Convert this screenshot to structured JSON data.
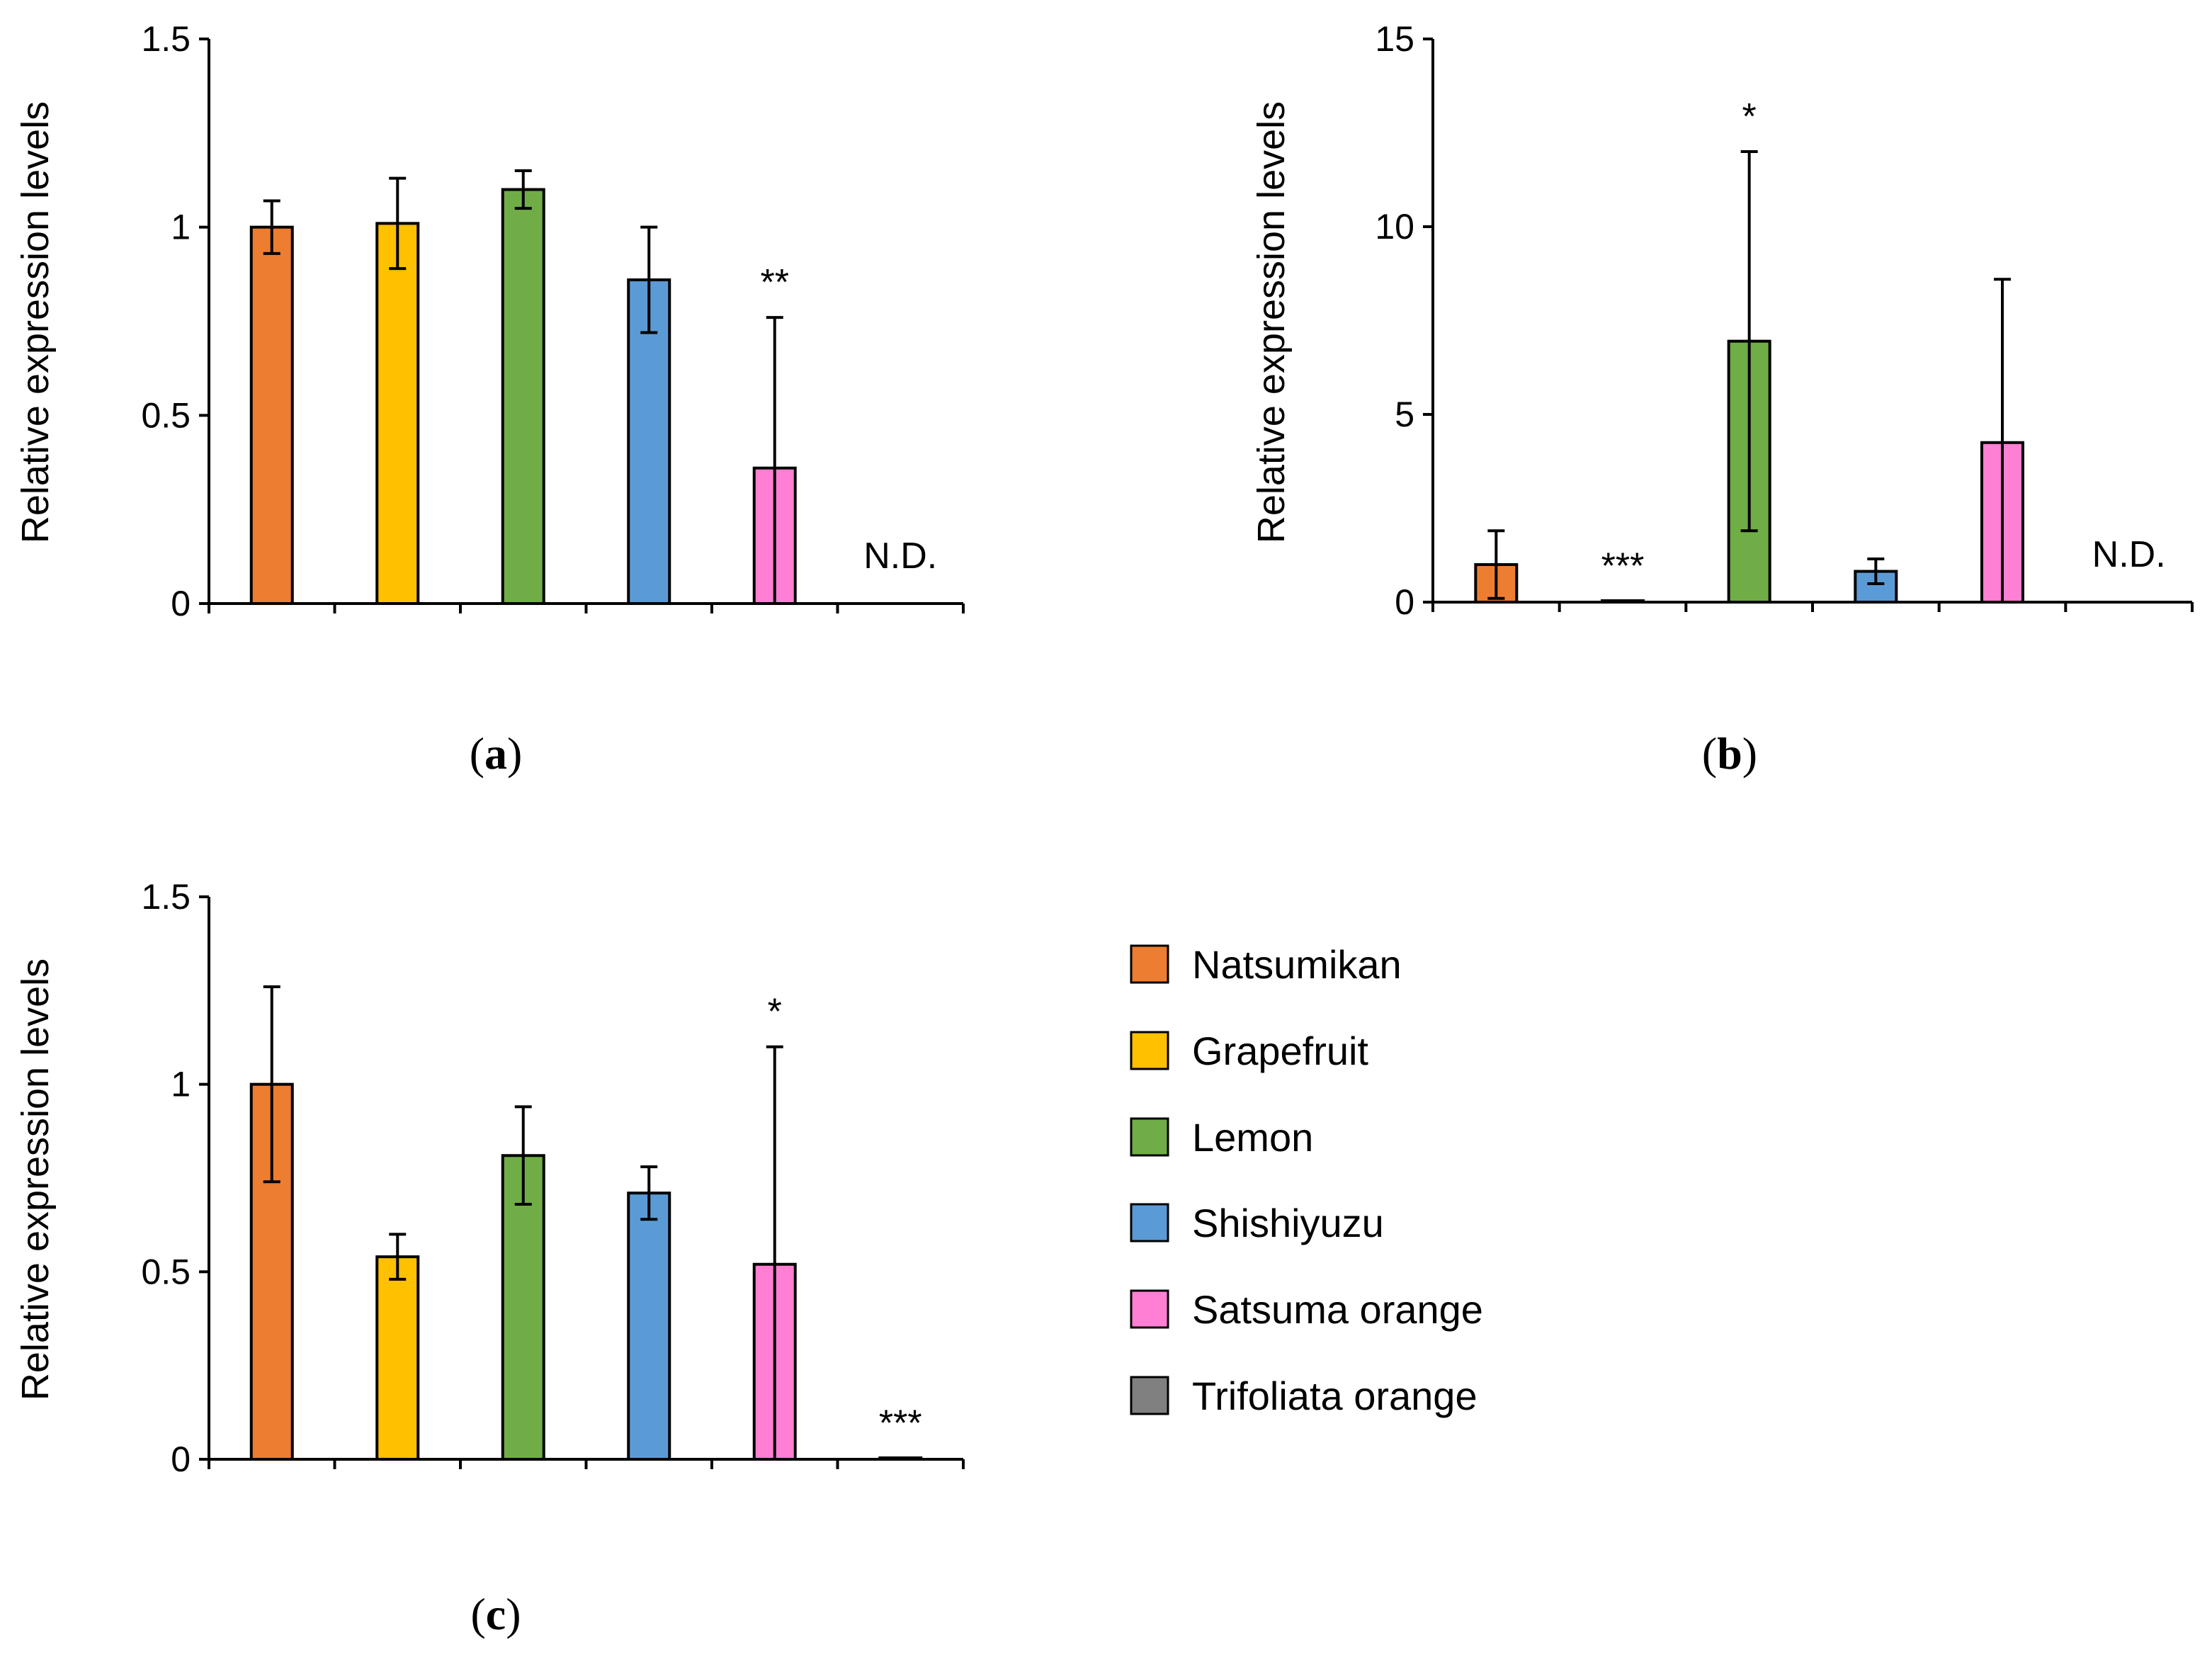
{
  "chart_data": [
    {
      "type": "bar",
      "panel": "a",
      "categories": [
        "Natsumikan",
        "Grapefruit",
        "Lemon",
        "Shishiyuzu",
        "Satsuma orange",
        "Trifoliata orange"
      ],
      "values": [
        1.0,
        1.01,
        1.1,
        0.86,
        0.36,
        null
      ],
      "errors": [
        0.07,
        0.12,
        0.05,
        0.14,
        0.4,
        null
      ],
      "annotations": [
        "",
        "",
        "",
        "",
        "**",
        "N.D."
      ],
      "ylabel": "Relative expression levels",
      "ylim": [
        0,
        1.5
      ],
      "yticks": [
        0,
        0.5,
        1,
        1.5
      ],
      "ytick_labels": [
        "0",
        "0.5",
        "1",
        "1.5"
      ]
    },
    {
      "type": "bar",
      "panel": "b",
      "categories": [
        "Natsumikan",
        "Grapefruit",
        "Lemon",
        "Shishiyuzu",
        "Satsuma orange",
        "Trifoliata orange"
      ],
      "values": [
        1.0,
        0.03,
        6.95,
        0.82,
        4.25,
        null
      ],
      "errors": [
        0.9,
        0.0,
        5.05,
        0.33,
        4.35,
        null
      ],
      "annotations": [
        "",
        "***",
        "*",
        "",
        "",
        "N.D."
      ],
      "ylabel": "Relative expression levels",
      "ylim": [
        0,
        15
      ],
      "yticks": [
        0,
        5,
        10,
        15
      ],
      "ytick_labels": [
        "0",
        "5",
        "10",
        "15"
      ]
    },
    {
      "type": "bar",
      "panel": "c",
      "categories": [
        "Natsumikan",
        "Grapefruit",
        "Lemon",
        "Shishiyuzu",
        "Satsuma orange",
        "Trifoliata orange"
      ],
      "values": [
        1.0,
        0.54,
        0.81,
        0.71,
        0.52,
        0.003
      ],
      "errors": [
        0.26,
        0.06,
        0.13,
        0.07,
        0.58,
        0.0
      ],
      "annotations": [
        "",
        "",
        "",
        "",
        "*",
        "***"
      ],
      "ylabel": "Relative expression levels",
      "ylim": [
        0,
        1.5
      ],
      "yticks": [
        0,
        0.5,
        1,
        1.5
      ],
      "ytick_labels": [
        "0",
        "0.5",
        "1",
        "1.5"
      ]
    }
  ],
  "colors": [
    "#ed7d31",
    "#ffc000",
    "#70ad47",
    "#5b9bd5",
    "#ff7fd4",
    "#808080"
  ],
  "panel_labels": [
    {
      "open": "(",
      "letter": "a",
      "close": ")"
    },
    {
      "open": "(",
      "letter": "b",
      "close": ")"
    },
    {
      "open": "(",
      "letter": "c",
      "close": ")"
    }
  ],
  "legend": {
    "items": [
      {
        "label": "Natsumikan",
        "color": "#ed7d31"
      },
      {
        "label": "Grapefruit",
        "color": "#ffc000"
      },
      {
        "label": "Lemon",
        "color": "#70ad47"
      },
      {
        "label": "Shishiyuzu",
        "color": "#5b9bd5"
      },
      {
        "label": "Satsuma orange",
        "color": "#ff7fd4"
      },
      {
        "label": "Trifoliata orange",
        "color": "#808080"
      }
    ]
  }
}
